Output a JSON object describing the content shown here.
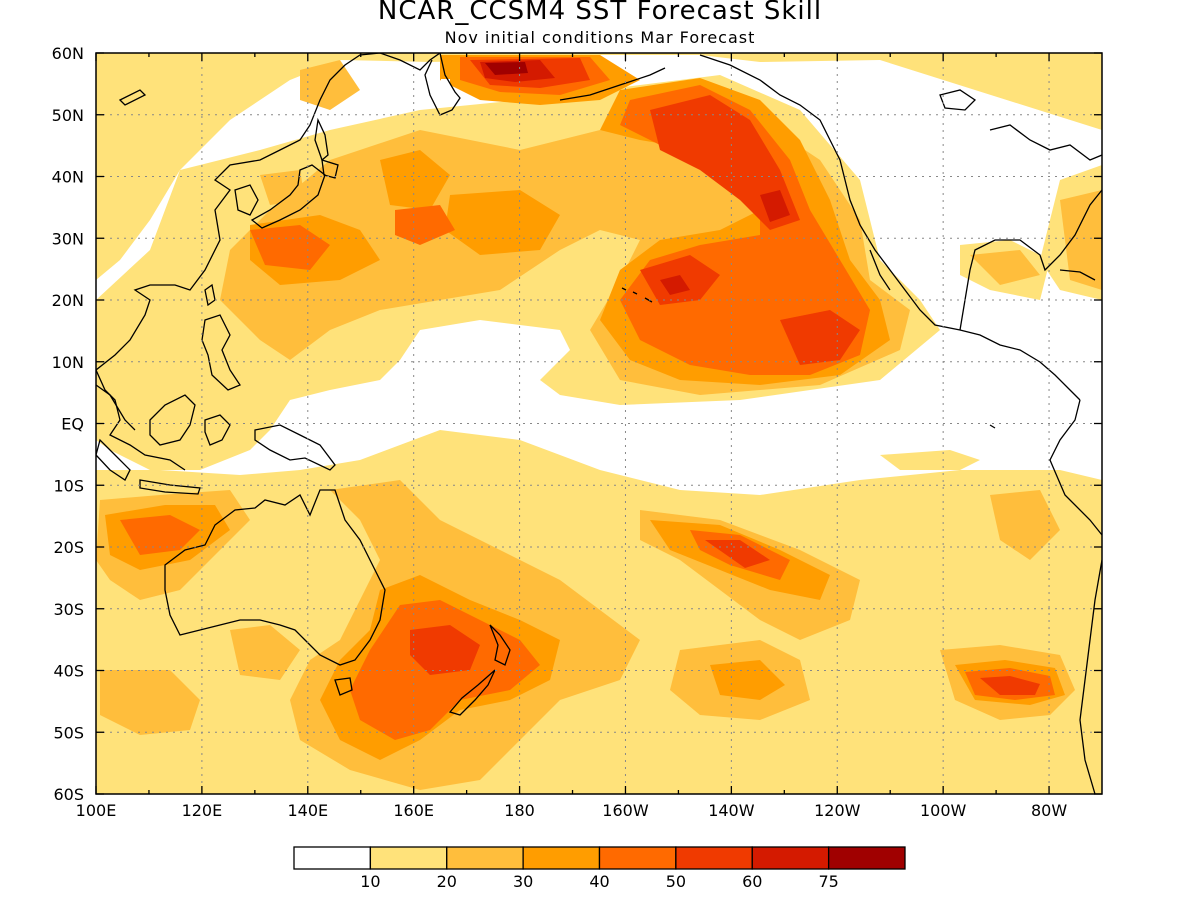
{
  "title": "NCAR_CCSM4 SST Forecast Skill",
  "subtitle": "Nov initial conditions  Mar Forecast",
  "map": {
    "lon_range": [
      100,
      290
    ],
    "lat_range": [
      -60,
      60
    ],
    "lon_tick_labels": [
      "100E",
      "120E",
      "140E",
      "160E",
      "180",
      "160W",
      "140W",
      "120W",
      "100W",
      "80W"
    ],
    "lat_tick_labels": [
      "60N",
      "50N",
      "40N",
      "30N",
      "20N",
      "10N",
      "EQ",
      "10S",
      "20S",
      "30S",
      "40S",
      "50S",
      "60S"
    ],
    "grid": "dotted"
  },
  "colorbar": {
    "levels": [
      "10",
      "20",
      "30",
      "40",
      "50",
      "60",
      "75"
    ],
    "colors": [
      "#ffffff",
      "#ffe27a",
      "#ffbe3c",
      "#ff9d00",
      "#ff6a00",
      "#f03a00",
      "#d41a00",
      "#a00000"
    ]
  },
  "shading_colors": {
    "c1": "#ffe27a",
    "c2": "#ffbe3c",
    "c3": "#ff9d00",
    "c4": "#ff6a00",
    "c5": "#f03a00",
    "c6": "#d41a00",
    "c7": "#a00000"
  }
}
